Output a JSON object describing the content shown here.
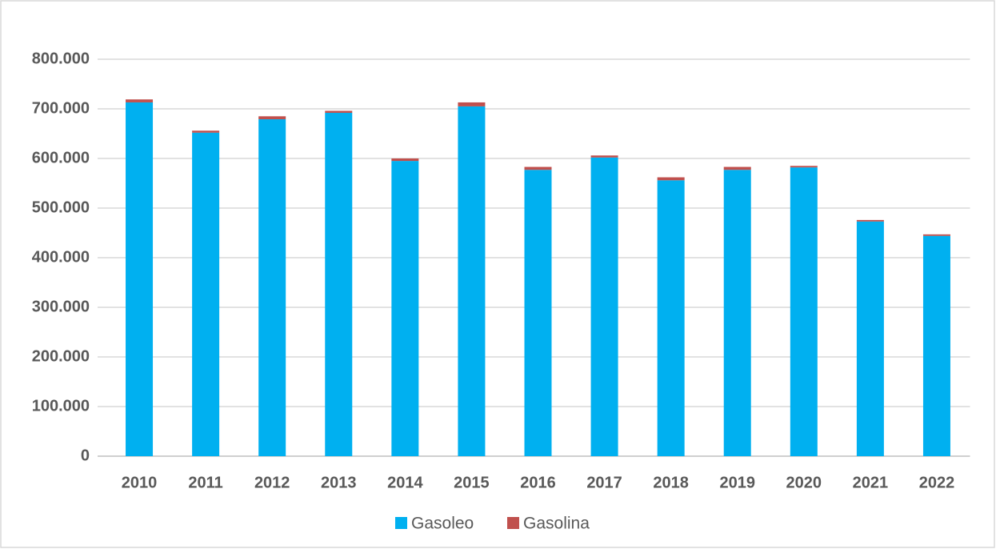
{
  "chart_data": {
    "type": "stacked_bar",
    "categories": [
      "2010",
      "2011",
      "2012",
      "2013",
      "2014",
      "2015",
      "2016",
      "2017",
      "2018",
      "2019",
      "2020",
      "2021",
      "2022"
    ],
    "series": [
      {
        "name": "Gasoleo",
        "color": "#00b0f0",
        "values": [
          713000,
          652000,
          679000,
          692000,
          595000,
          705000,
          577000,
          602000,
          556000,
          577000,
          582000,
          473000,
          444000
        ]
      },
      {
        "name": "Gasolina",
        "color": "#c0504d",
        "values": [
          6000,
          4000,
          6000,
          4000,
          5000,
          8000,
          6000,
          4000,
          6000,
          6000,
          3000,
          3000,
          3000
        ]
      }
    ],
    "ylim": [
      0,
      800000
    ],
    "yticks": [
      0,
      {
        "value": 100000,
        "label": "100.000"
      },
      {
        "value": 200000,
        "label": "200.000"
      },
      {
        "value": 300000,
        "label": "300.000"
      },
      {
        "value": 400000,
        "label": "400.000"
      },
      {
        "value": 500000,
        "label": "500.000"
      },
      {
        "value": 600000,
        "label": "600.000"
      },
      {
        "value": 700000,
        "label": "700.000"
      },
      {
        "value": 800000,
        "label": "800.000"
      }
    ],
    "grid": true,
    "legend": "bottom"
  }
}
